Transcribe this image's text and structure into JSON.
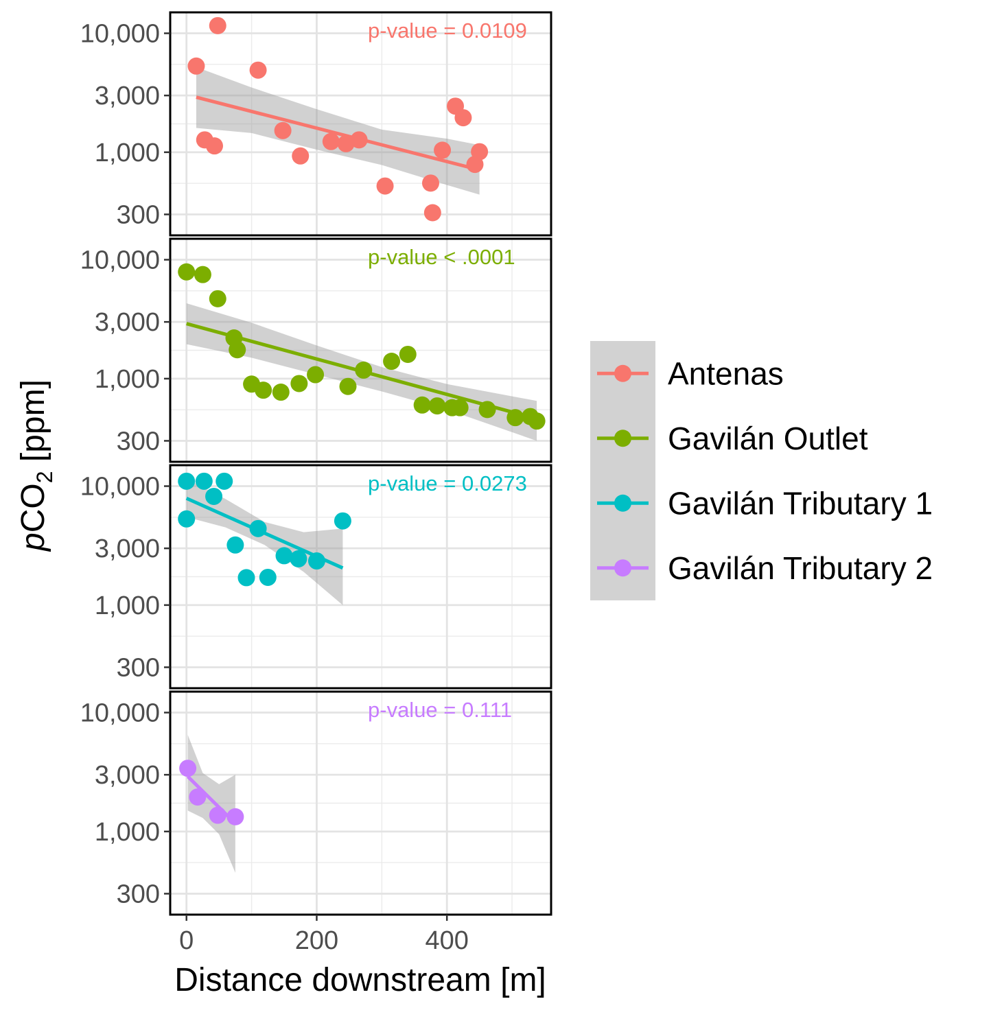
{
  "chart_data": {
    "type": "scatter",
    "xlabel": "Distance downstream [m]",
    "ylabel": "pCO2 [ppm]",
    "ylabel_parts": {
      "italic": "p",
      "main": "CO",
      "sub": "2",
      "suffix": " [ppm]"
    },
    "xlim": [
      -25,
      560
    ],
    "ylim": [
      200,
      15000
    ],
    "yscale": "log",
    "xticks": [
      0,
      200,
      400
    ],
    "xtick_labels": [
      "0",
      "200",
      "400"
    ],
    "yticks": [
      300,
      1000,
      3000,
      10000
    ],
    "ytick_labels": [
      "300",
      "1,000",
      "3,000",
      "10,000"
    ],
    "grid": true,
    "legend_position": "right",
    "series": [
      {
        "name": "Antenas",
        "color": "#F8766D",
        "pvalue": "p-value = 0.0109",
        "x": [
          15,
          48,
          28,
          43,
          110,
          148,
          175,
          222,
          245,
          265,
          305,
          375,
          378,
          393,
          413,
          425,
          443,
          450
        ],
        "y": [
          5300,
          11600,
          1270,
          1130,
          4900,
          1520,
          930,
          1230,
          1180,
          1270,
          520,
          550,
          310,
          1040,
          2440,
          1950,
          790,
          1010
        ],
        "fit": {
          "x": [
            15,
            450
          ],
          "y": [
            2900,
            710
          ]
        },
        "ci": {
          "x": [
            15,
            100,
            200,
            300,
            400,
            450
          ],
          "lower": [
            1600,
            1450,
            1050,
            780,
            530,
            440
          ],
          "upper": [
            5200,
            3500,
            2300,
            1550,
            1300,
            1150
          ]
        }
      },
      {
        "name": "Gavilán Outlet",
        "color": "#7CAE00",
        "pvalue": "p-value < .0001",
        "x": [
          0,
          25,
          48,
          73,
          78,
          100,
          118,
          145,
          173,
          198,
          248,
          272,
          315,
          340,
          362,
          385,
          408,
          420,
          462,
          505,
          528,
          538
        ],
        "y": [
          7900,
          7500,
          4700,
          2200,
          1750,
          900,
          800,
          770,
          910,
          1080,
          860,
          1180,
          1400,
          1600,
          600,
          590,
          570,
          570,
          550,
          470,
          480,
          440
        ],
        "fit": {
          "x": [
            0,
            538
          ],
          "y": [
            2900,
            460
          ]
        },
        "ci": {
          "x": [
            0,
            100,
            200,
            300,
            400,
            538
          ],
          "lower": [
            1950,
            1500,
            1080,
            780,
            550,
            300
          ],
          "upper": [
            4300,
            2950,
            1900,
            1250,
            900,
            650
          ]
        }
      },
      {
        "name": "Gavilán Tributary 1",
        "color": "#00BFC4",
        "pvalue": "p-value = 0.0273",
        "x": [
          0,
          27,
          58,
          42,
          0,
          110,
          75,
          92,
          125,
          150,
          172,
          200,
          240
        ],
        "y": [
          11000,
          11000,
          11000,
          8200,
          5300,
          4400,
          3200,
          1700,
          1710,
          2600,
          2450,
          2350,
          5100
        ],
        "fit": {
          "x": [
            0,
            240
          ],
          "y": [
            7900,
            2050
          ]
        },
        "ci": {
          "x": [
            0,
            60,
            120,
            180,
            240
          ],
          "lower": [
            5500,
            4500,
            3200,
            1900,
            1000
          ],
          "upper": [
            11500,
            7800,
            5000,
            4100,
            4400
          ]
        }
      },
      {
        "name": "Gavilán Tributary 2",
        "color": "#C77CFF",
        "pvalue": "p-value = 0.111",
        "x": [
          2,
          17,
          48,
          75
        ],
        "y": [
          3400,
          1950,
          1370,
          1330
        ],
        "fit": {
          "x": [
            2,
            75
          ],
          "y": [
            2900,
            1170
          ]
        },
        "ci": {
          "x": [
            2,
            25,
            50,
            75
          ],
          "lower": [
            1500,
            1300,
            950,
            450
          ],
          "upper": [
            6500,
            3100,
            2500,
            3000
          ]
        }
      }
    ]
  }
}
